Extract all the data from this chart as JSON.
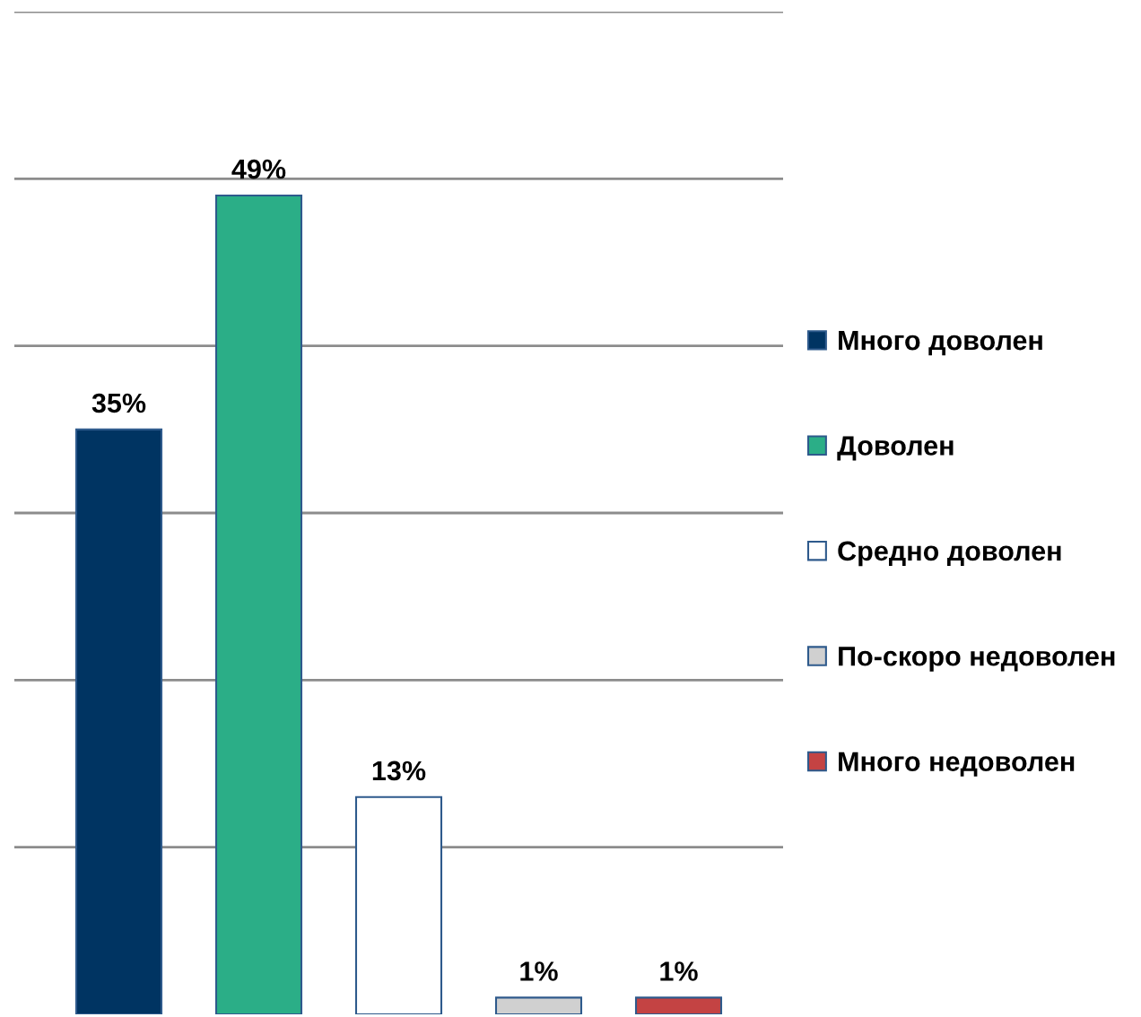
{
  "chart_data": {
    "type": "bar",
    "stacked": true,
    "categories": [
      null,
      null,
      null,
      null,
      null
    ],
    "series": [
      {
        "name": "Много доволен",
        "color": "#003462",
        "values": [
          35,
          null,
          null,
          null,
          null
        ],
        "value_labels": [
          "35%",
          null,
          null,
          null,
          null
        ]
      },
      {
        "name": "Доволен",
        "color": "#2bae87",
        "values": [
          null,
          49,
          null,
          null,
          null
        ],
        "value_labels": [
          null,
          "49%",
          null,
          null,
          null
        ]
      },
      {
        "name": "Средно доволен",
        "color": "#ffffff",
        "values": [
          null,
          null,
          13,
          null,
          null
        ],
        "value_labels": [
          null,
          null,
          "13%",
          null,
          null
        ]
      },
      {
        "name": "По-скоро недоволен",
        "color": "#d0d0d0",
        "values": [
          null,
          null,
          null,
          1,
          null
        ],
        "value_labels": [
          null,
          null,
          null,
          "1%",
          null
        ]
      },
      {
        "name": "Много недоволен",
        "color": "#c44343",
        "values": [
          null,
          null,
          null,
          null,
          1
        ],
        "value_labels": [
          null,
          null,
          null,
          null,
          "1%"
        ]
      }
    ],
    "ylim": [
      0,
      60
    ],
    "yticks": [
      {
        "value": 10,
        "label": null
      },
      {
        "value": 20,
        "label": null
      },
      {
        "value": 30,
        "label": null
      },
      {
        "value": 40,
        "label": null
      },
      {
        "value": 50,
        "label": null
      },
      {
        "value": 60,
        "label": null
      }
    ],
    "grid": "y",
    "legend": "right"
  }
}
